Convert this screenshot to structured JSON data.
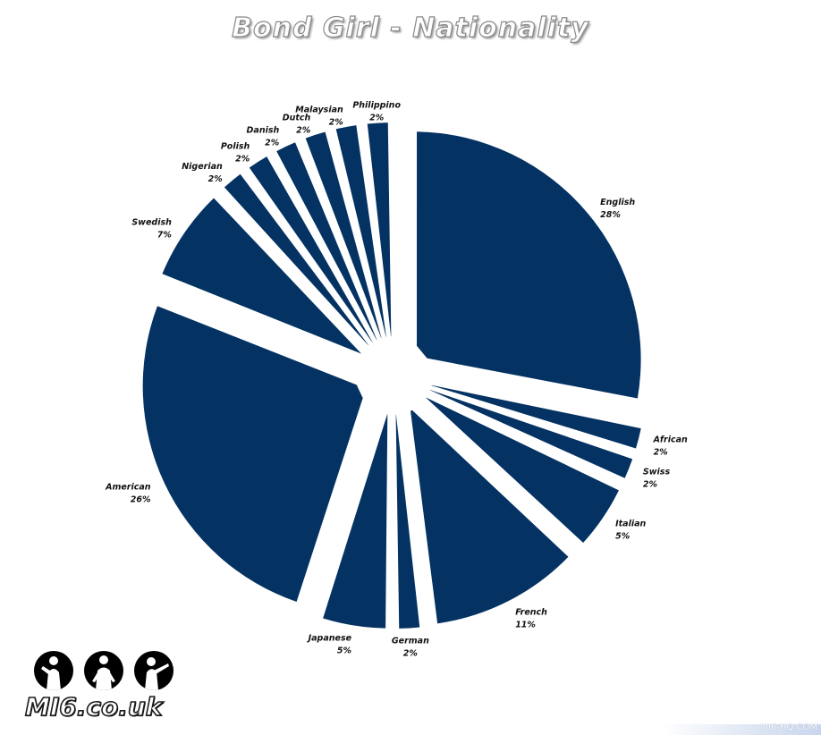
{
  "chart_data": {
    "type": "pie",
    "title": "Bond Girl - Nationality",
    "color": "#033263",
    "slices": [
      {
        "label": "English",
        "pct_label": "28%",
        "value": 28
      },
      {
        "label": "African",
        "pct_label": "2%",
        "value": 2
      },
      {
        "label": "Swiss",
        "pct_label": "2%",
        "value": 2
      },
      {
        "label": "Italian",
        "pct_label": "5%",
        "value": 5
      },
      {
        "label": "French",
        "pct_label": "11%",
        "value": 11
      },
      {
        "label": "German",
        "pct_label": "2%",
        "value": 2
      },
      {
        "label": "Japanese",
        "pct_label": "5%",
        "value": 5
      },
      {
        "label": "American",
        "pct_label": "26%",
        "value": 26
      },
      {
        "label": "Swedish",
        "pct_label": "7%",
        "value": 7
      },
      {
        "label": "Nigerian",
        "pct_label": "2%",
        "value": 2
      },
      {
        "label": "Polish",
        "pct_label": "2%",
        "value": 2
      },
      {
        "label": "Danish",
        "pct_label": "2%",
        "value": 2
      },
      {
        "label": "Dutch",
        "pct_label": "2%",
        "value": 2
      },
      {
        "label": "Malaysian",
        "pct_label": "2%",
        "value": 2
      },
      {
        "label": "Philippino",
        "pct_label": "2%",
        "value": 2
      }
    ]
  },
  "branding": {
    "logo_text": "MI6.co.uk",
    "watermark": "MI6-HQ.COM"
  }
}
